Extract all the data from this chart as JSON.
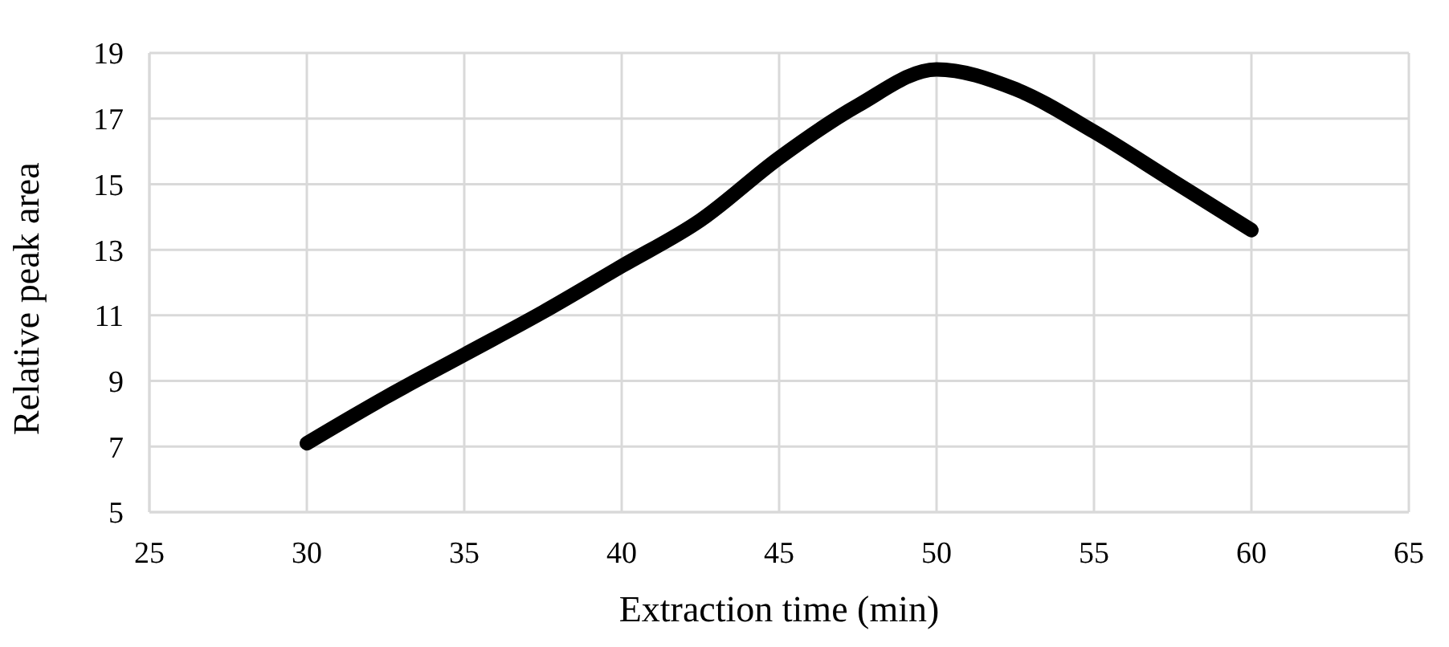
{
  "chart_data": {
    "type": "line",
    "xlabel": "Extraction time (min)",
    "ylabel": "Relative peak area",
    "x": [
      30,
      32.5,
      35,
      37.5,
      40,
      42.5,
      45,
      47.5,
      50,
      52.5,
      55,
      57.5,
      60
    ],
    "series": [
      {
        "color": "#000000",
        "values": [
          7.1,
          8.5,
          9.8,
          11.1,
          12.5,
          13.9,
          15.8,
          17.4,
          18.5,
          17.9,
          16.6,
          15.1,
          13.6
        ]
      }
    ],
    "xlim": [
      25,
      65
    ],
    "xticks": [
      25,
      30,
      35,
      40,
      45,
      50,
      55,
      60,
      65
    ],
    "ylim": [
      5,
      19
    ],
    "yticks": [
      5,
      7,
      9,
      11,
      13,
      15,
      17,
      19
    ],
    "grid": true,
    "marker": "none",
    "line_style": "solid"
  }
}
